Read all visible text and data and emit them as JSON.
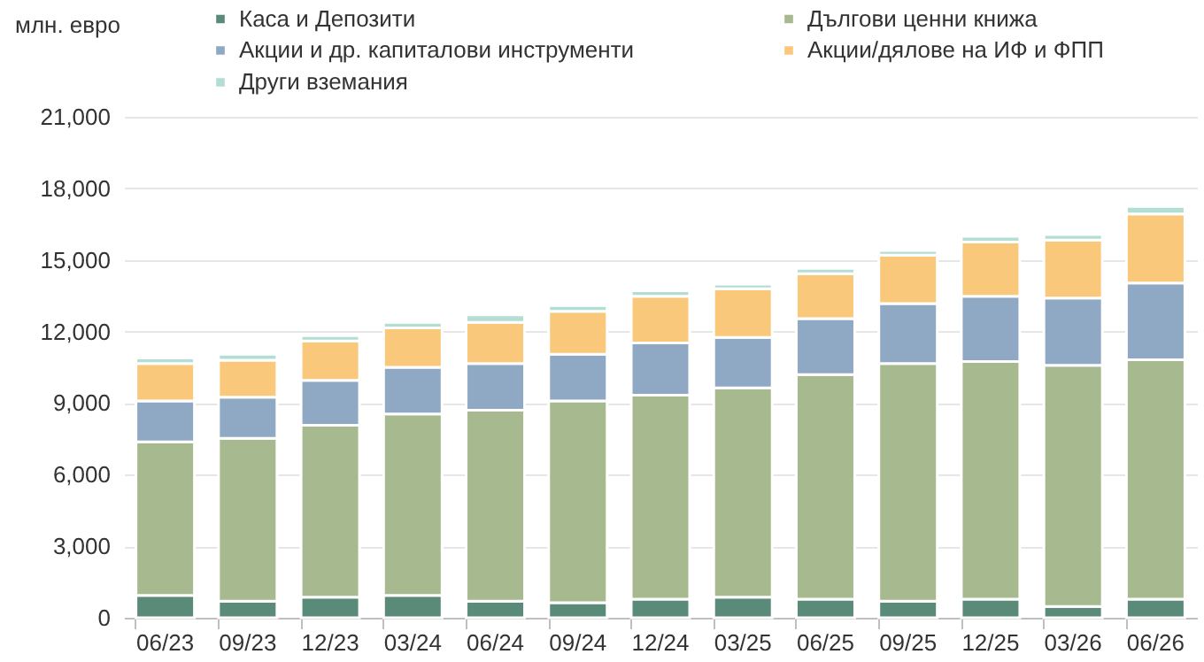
{
  "chart_data": {
    "type": "bar",
    "stacked": true,
    "ylabel": "млн. евро",
    "categories": [
      "06/23",
      "09/23",
      "12/23",
      "03/24",
      "06/24",
      "09/24",
      "12/24",
      "03/25",
      "06/25",
      "09/25",
      "12/25",
      "03/26",
      "06/26"
    ],
    "series": [
      {
        "name": "Каса и Депозити",
        "color": "#5a8a78",
        "values": [
          940,
          700,
          860,
          940,
          700,
          630,
          780,
          860,
          780,
          700,
          780,
          470,
          780
        ]
      },
      {
        "name": "Дългови ценни книжа",
        "color": "#a7b98e",
        "values": [
          6430,
          6820,
          7210,
          7600,
          8000,
          8460,
          8550,
          8780,
          9410,
          9960,
          9960,
          10110,
          10040
        ]
      },
      {
        "name": "Акции и др. капиталови инструменти",
        "color": "#8fa8c4",
        "values": [
          1720,
          1730,
          1880,
          1960,
          1960,
          1960,
          2190,
          2110,
          2350,
          2510,
          2740,
          2820,
          3210
        ]
      },
      {
        "name": "Акции/дялове на ИФ и ФПП",
        "color": "#f9c87a",
        "values": [
          1570,
          1550,
          1650,
          1650,
          1720,
          1800,
          1960,
          2040,
          1880,
          2030,
          2270,
          2430,
          2900
        ]
      },
      {
        "name": "Други вземания",
        "color": "#b4ddd4",
        "values": [
          230,
          250,
          230,
          230,
          320,
          240,
          230,
          200,
          230,
          200,
          240,
          240,
          310
        ]
      }
    ],
    "ylim": [
      0,
      21000
    ],
    "yticks": [
      0,
      {
        "value": 3000,
        "label": "3,000"
      },
      {
        "value": 6000,
        "label": "6,000"
      },
      {
        "value": 9000,
        "label": "9,000"
      },
      {
        "value": 12000,
        "label": "12,000"
      },
      {
        "value": 15000,
        "label": "15,000"
      },
      {
        "value": 18000,
        "label": "18,000"
      },
      {
        "value": 21000,
        "label": "21,000"
      }
    ],
    "grid": "y",
    "legend": "top"
  }
}
